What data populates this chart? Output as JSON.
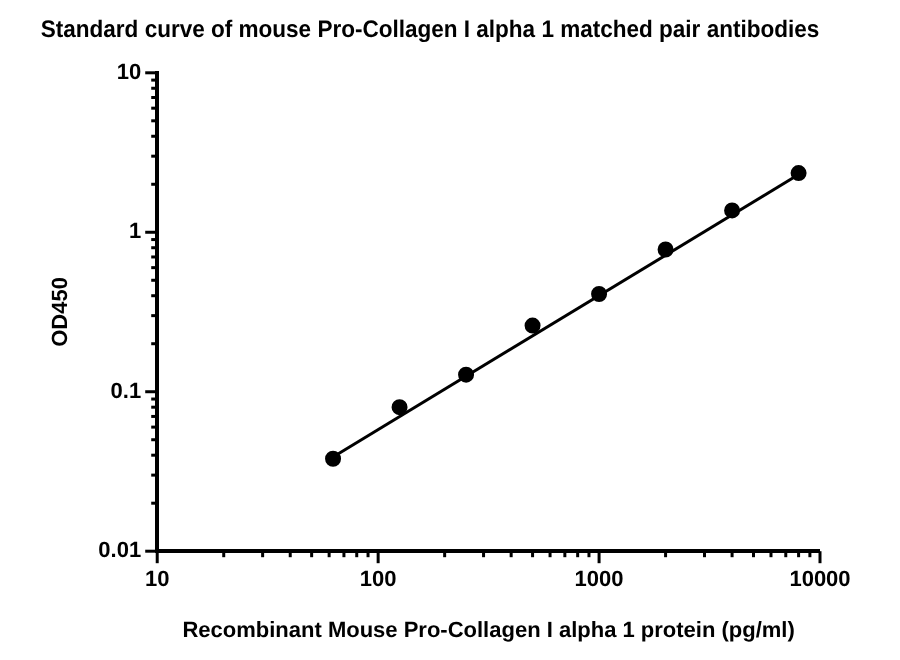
{
  "chart_data": {
    "type": "scatter",
    "title": "Standard curve of mouse Pro-Collagen I alpha 1 matched pair antibodies",
    "xlabel": "Recombinant Mouse Pro-Collagen I alpha 1 protein (pg/ml)",
    "ylabel": "OD450",
    "log": "xy",
    "grid": false,
    "legend": false,
    "marker": "circle",
    "xlim": [
      10,
      10000
    ],
    "xticks": [
      10,
      {
        "value": 20,
        "label": null
      },
      {
        "value": 30,
        "label": null
      },
      {
        "value": 40,
        "label": null
      },
      {
        "value": 50,
        "label": null
      },
      {
        "value": 60,
        "label": null
      },
      {
        "value": 70,
        "label": null
      },
      {
        "value": 80,
        "label": null
      },
      {
        "value": 90,
        "label": null
      },
      100,
      {
        "value": 200,
        "label": null
      },
      {
        "value": 300,
        "label": null
      },
      {
        "value": 400,
        "label": null
      },
      {
        "value": 500,
        "label": null
      },
      {
        "value": 600,
        "label": null
      },
      {
        "value": 700,
        "label": null
      },
      {
        "value": 800,
        "label": null
      },
      {
        "value": 900,
        "label": null
      },
      1000,
      {
        "value": 2000,
        "label": null
      },
      {
        "value": 3000,
        "label": null
      },
      {
        "value": 4000,
        "label": null
      },
      {
        "value": 5000,
        "label": null
      },
      {
        "value": 6000,
        "label": null
      },
      {
        "value": 7000,
        "label": null
      },
      {
        "value": 8000,
        "label": null
      },
      {
        "value": 9000,
        "label": null
      },
      10000
    ],
    "ylim": [
      0.01,
      10
    ],
    "yticks": [
      0.01,
      {
        "value": 0.02,
        "label": null
      },
      {
        "value": 0.03,
        "label": null
      },
      {
        "value": 0.04,
        "label": null
      },
      {
        "value": 0.05,
        "label": null
      },
      {
        "value": 0.06,
        "label": null
      },
      {
        "value": 0.07,
        "label": null
      },
      {
        "value": 0.08,
        "label": null
      },
      {
        "value": 0.09,
        "label": null
      },
      0.1,
      {
        "value": 0.2,
        "label": null
      },
      {
        "value": 0.3,
        "label": null
      },
      {
        "value": 0.4,
        "label": null
      },
      {
        "value": 0.5,
        "label": null
      },
      {
        "value": 0.6,
        "label": null
      },
      {
        "value": 0.7,
        "label": null
      },
      {
        "value": 0.8,
        "label": null
      },
      {
        "value": 0.9,
        "label": null
      },
      1,
      {
        "value": 2,
        "label": null
      },
      {
        "value": 3,
        "label": null
      },
      {
        "value": 4,
        "label": null
      },
      {
        "value": 5,
        "label": null
      },
      {
        "value": 6,
        "label": null
      },
      {
        "value": 7,
        "label": null
      },
      {
        "value": 8,
        "label": null
      },
      {
        "value": 9,
        "label": null
      },
      10
    ],
    "series": [
      {
        "color": "#000000",
        "x": [
          62.5,
          125,
          250,
          500,
          1000,
          2000,
          4000,
          8000
        ],
        "values": [
          0.038,
          0.08,
          0.128,
          0.26,
          0.41,
          0.78,
          1.37,
          2.35
        ]
      },
      {
        "type": "line",
        "color": "#000000",
        "marker": "none",
        "x": [
          62.5,
          8000
        ],
        "values": [
          0.039,
          2.3
        ]
      }
    ]
  }
}
